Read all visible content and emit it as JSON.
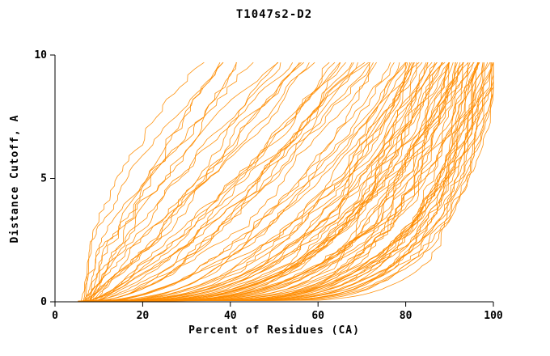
{
  "page": {
    "background": "#ffffff"
  },
  "chart_data": {
    "type": "line",
    "title": "T1047s2-D2",
    "xlabel": "Percent of Residues (CA)",
    "ylabel": "Distance Cutoff, A",
    "xlim": [
      0,
      100
    ],
    "ylim": [
      0,
      10
    ],
    "x_ticks": [
      0,
      20,
      40,
      60,
      80,
      100
    ],
    "y_ticks": [
      0,
      5,
      10
    ],
    "grid": false,
    "legend": "none",
    "line_color": "#ff8c00",
    "axis_color": "#000000",
    "y_data_max": 9.7,
    "description": "Cumulative distance-cutoff curves, one per structure model: percent of CA residues fitting under each distance cutoff.",
    "curve_param_format": [
      "x_percent_at_cutoff0",
      "x_percent_at_cutoff_max",
      "shape_exponent"
    ],
    "curves": [
      [
        7,
        34,
        1.5
      ],
      [
        6.5,
        38,
        1.4
      ],
      [
        8,
        41,
        1.3
      ],
      [
        7.5,
        44,
        1.25
      ],
      [
        6,
        47,
        1.2
      ],
      [
        8.5,
        50,
        1.15
      ],
      [
        7,
        53,
        1.1
      ],
      [
        9,
        55,
        1.05
      ],
      [
        6.8,
        36,
        1.45
      ],
      [
        7.8,
        49,
        1.2
      ],
      [
        8.2,
        43,
        1.3
      ],
      [
        6.2,
        52,
        1.0
      ],
      [
        7,
        57,
        0.95
      ],
      [
        8,
        59,
        0.9
      ],
      [
        6,
        61,
        0.85
      ],
      [
        9,
        63,
        0.8
      ],
      [
        7.5,
        65,
        0.78
      ],
      [
        8.5,
        66,
        0.72
      ],
      [
        6.5,
        68,
        0.7
      ],
      [
        9.5,
        70,
        0.65
      ],
      [
        7,
        71,
        0.62
      ],
      [
        8,
        73,
        0.58
      ],
      [
        6.8,
        74,
        0.55
      ],
      [
        9.2,
        75,
        0.52
      ],
      [
        7.4,
        58,
        0.92
      ],
      [
        8.8,
        62,
        0.82
      ],
      [
        6.4,
        67,
        0.7
      ],
      [
        7.9,
        69,
        0.66
      ],
      [
        8.3,
        72,
        0.6
      ],
      [
        6.9,
        64,
        0.75
      ],
      [
        7,
        76,
        0.5
      ],
      [
        8,
        77,
        0.48
      ],
      [
        6,
        78,
        0.46
      ],
      [
        9,
        79,
        0.44
      ],
      [
        10,
        80,
        0.42
      ],
      [
        7.5,
        81,
        0.4
      ],
      [
        8.5,
        82,
        0.38
      ],
      [
        6.5,
        83,
        0.36
      ],
      [
        9.5,
        84,
        0.34
      ],
      [
        10.5,
        85,
        0.32
      ],
      [
        7,
        86,
        0.3
      ],
      [
        8,
        87,
        0.29
      ],
      [
        6,
        88,
        0.28
      ],
      [
        9,
        89,
        0.27
      ],
      [
        10,
        90,
        0.26
      ],
      [
        7.8,
        91,
        0.24
      ],
      [
        8.6,
        92,
        0.22
      ],
      [
        11,
        78,
        0.45
      ],
      [
        5.5,
        80,
        0.42
      ],
      [
        6.8,
        84,
        0.35
      ],
      [
        9.8,
        86,
        0.3
      ],
      [
        10.8,
        88,
        0.27
      ],
      [
        7.2,
        90,
        0.25
      ],
      [
        8.4,
        92,
        0.21
      ],
      [
        5.8,
        82,
        0.38
      ],
      [
        8,
        93,
        0.2
      ],
      [
        9,
        94,
        0.19
      ],
      [
        10,
        95,
        0.18
      ],
      [
        11,
        96,
        0.17
      ],
      [
        7,
        97,
        0.16
      ],
      [
        8.5,
        98,
        0.15
      ],
      [
        9.5,
        99,
        0.14
      ],
      [
        10.5,
        100,
        0.13
      ],
      [
        11.5,
        100,
        0.12
      ],
      [
        6.5,
        99,
        0.15
      ],
      [
        12,
        98,
        0.16
      ],
      [
        8.2,
        96,
        0.18
      ],
      [
        9.4,
        97,
        0.17
      ],
      [
        10.2,
        95,
        0.19
      ],
      [
        11.8,
        94,
        0.2
      ],
      [
        6.9,
        100,
        0.14
      ],
      [
        7.6,
        99,
        0.13
      ],
      [
        12.5,
        100,
        0.15
      ],
      [
        8.9,
        98,
        0.14
      ],
      [
        9.9,
        96,
        0.2
      ],
      [
        5.2,
        85,
        0.33
      ],
      [
        6.1,
        87,
        0.31
      ],
      [
        7.3,
        89,
        0.29
      ],
      [
        8.1,
        91,
        0.27
      ],
      [
        9.3,
        93,
        0.25
      ],
      [
        10.1,
        95,
        0.23
      ],
      [
        11.2,
        97,
        0.21
      ],
      [
        12.2,
        99,
        0.19
      ],
      [
        5.6,
        86,
        0.32
      ],
      [
        6.6,
        88,
        0.3
      ],
      [
        7.7,
        90,
        0.28
      ],
      [
        8.8,
        92,
        0.26
      ],
      [
        9.6,
        94,
        0.24
      ],
      [
        10.6,
        96,
        0.22
      ],
      [
        11.6,
        98,
        0.2
      ],
      [
        12.8,
        100,
        0.18
      ],
      [
        5.4,
        83,
        0.34
      ],
      [
        6.3,
        85,
        0.32
      ],
      [
        7.1,
        87,
        0.3
      ],
      [
        8.3,
        89,
        0.28
      ],
      [
        9.1,
        91,
        0.26
      ],
      [
        10.3,
        93,
        0.24
      ],
      [
        11.4,
        95,
        0.22
      ],
      [
        12.4,
        97,
        0.2
      ],
      [
        13,
        99,
        0.17
      ]
    ]
  }
}
